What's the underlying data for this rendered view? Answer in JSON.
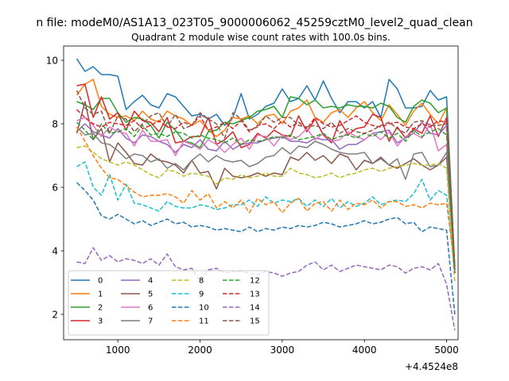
{
  "suptitle": "n file: modeM0/AS1A13_023T05_9000006062_45259cztM0_level2_quad_clean",
  "chart_data": {
    "type": "line",
    "title": "Quadrant 2 module wise count rates with 100.0s bins.",
    "xlabel": "",
    "ylabel": "",
    "x_offset_label": "+4.4524e8",
    "xlim": [
      340,
      5140
    ],
    "ylim": [
      1.2,
      10.45
    ],
    "xticks": [
      1000,
      2000,
      3000,
      4000,
      5000
    ],
    "xtick_labels": [
      "1000",
      "2000",
      "3000",
      "4000",
      "5000"
    ],
    "yticks": [
      2,
      4,
      6,
      8,
      10
    ],
    "ytick_labels": [
      "2",
      "4",
      "6",
      "8",
      "10"
    ],
    "grid": false,
    "legend_position": "lower-left",
    "x": [
      500,
      600,
      700,
      800,
      900,
      1000,
      1100,
      1200,
      1300,
      1400,
      1500,
      1600,
      1700,
      1800,
      1900,
      2000,
      2100,
      2200,
      2300,
      2400,
      2500,
      2600,
      2700,
      2800,
      2900,
      3000,
      3100,
      3200,
      3300,
      3400,
      3500,
      3600,
      3700,
      3800,
      3900,
      4000,
      4100,
      4200,
      4300,
      4400,
      4500,
      4600,
      4700,
      4800,
      4900,
      5000,
      5100
    ],
    "series": [
      {
        "name": "0",
        "color": "#1f77b4",
        "dash": "solid",
        "values": [
          10.05,
          9.65,
          9.8,
          9.55,
          9.55,
          9.5,
          8.45,
          8.7,
          8.9,
          8.6,
          8.5,
          8.95,
          8.85,
          8.55,
          8.25,
          8.3,
          8.15,
          8.3,
          7.95,
          8.2,
          8.95,
          8.15,
          8.3,
          8.55,
          8.65,
          9.1,
          8.7,
          8.8,
          9.2,
          8.75,
          9.35,
          8.8,
          8.35,
          8.7,
          8.7,
          8.5,
          8.7,
          8.2,
          9.4,
          9.1,
          8.5,
          8.5,
          8.55,
          9.05,
          8.75,
          8.85,
          3.5
        ]
      },
      {
        "name": "1",
        "color": "#ff7f0e",
        "dash": "solid",
        "values": [
          8.9,
          9.25,
          9.4,
          8.55,
          8.3,
          8.2,
          8.25,
          8.1,
          8.4,
          8.15,
          8.05,
          8.4,
          8.25,
          8.15,
          7.95,
          8.1,
          7.8,
          7.6,
          7.8,
          8.2,
          8.15,
          8.25,
          8.0,
          8.25,
          8.3,
          8.0,
          8.4,
          8.5,
          8.75,
          8.2,
          8.05,
          8.35,
          8.45,
          8.2,
          8.5,
          8.7,
          8.35,
          8.1,
          8.6,
          8.3,
          7.95,
          8.4,
          8.65,
          8.3,
          8.0,
          8.5,
          3.4
        ]
      },
      {
        "name": "2",
        "color": "#2ca02c",
        "dash": "solid",
        "values": [
          8.7,
          8.6,
          8.45,
          8.8,
          8.8,
          8.35,
          8.05,
          8.2,
          8.15,
          7.95,
          7.55,
          8.05,
          7.8,
          7.45,
          7.4,
          7.25,
          7.75,
          7.8,
          8.05,
          8.0,
          8.1,
          8.2,
          8.4,
          8.45,
          8.55,
          8.2,
          8.85,
          8.8,
          8.6,
          8.75,
          8.5,
          8.55,
          8.5,
          8.6,
          8.55,
          8.55,
          8.5,
          8.65,
          8.55,
          8.2,
          8.05,
          8.55,
          8.75,
          8.65,
          8.35,
          8.5,
          3.4
        ]
      },
      {
        "name": "3",
        "color": "#d62728",
        "dash": "solid",
        "values": [
          9.2,
          9.25,
          8.2,
          8.85,
          8.15,
          8.35,
          7.8,
          8.4,
          8.1,
          8.05,
          7.75,
          8.2,
          7.4,
          7.45,
          7.6,
          7.6,
          8.2,
          7.35,
          7.5,
          7.75,
          7.25,
          7.35,
          7.7,
          7.55,
          7.8,
          7.65,
          7.6,
          8.25,
          7.75,
          8.15,
          7.65,
          7.4,
          8.1,
          7.65,
          7.85,
          7.9,
          8.3,
          8.2,
          7.45,
          7.9,
          7.55,
          7.85,
          7.7,
          8.25,
          7.6,
          8.2,
          3.4
        ]
      },
      {
        "name": "4",
        "color": "#9467bd",
        "dash": "solid",
        "values": [
          7.75,
          8.0,
          7.75,
          7.65,
          7.55,
          7.85,
          7.55,
          7.4,
          7.65,
          7.6,
          7.45,
          7.35,
          7.1,
          7.35,
          7.25,
          7.5,
          7.2,
          7.15,
          7.45,
          7.2,
          7.35,
          7.4,
          7.4,
          7.5,
          7.55,
          7.6,
          7.45,
          7.45,
          7.4,
          7.55,
          7.5,
          7.5,
          7.2,
          7.35,
          7.35,
          7.5,
          7.7,
          7.75,
          7.8,
          7.4,
          7.55,
          7.7,
          8.05,
          7.7,
          7.65,
          7.95,
          3.3
        ]
      },
      {
        "name": "5",
        "color": "#8c564b",
        "dash": "solid",
        "values": [
          7.7,
          8.7,
          7.5,
          7.85,
          6.8,
          7.4,
          7.1,
          6.75,
          6.7,
          7.05,
          6.85,
          6.8,
          6.7,
          6.45,
          6.85,
          6.45,
          6.5,
          5.95,
          6.6,
          6.35,
          6.3,
          6.35,
          6.45,
          6.35,
          6.45,
          6.4,
          6.95,
          6.85,
          7.1,
          6.85,
          7.0,
          6.75,
          7.05,
          6.95,
          6.55,
          6.85,
          6.75,
          6.95,
          6.7,
          6.6,
          6.75,
          6.9,
          6.7,
          6.55,
          6.7,
          6.95,
          3.3
        ]
      },
      {
        "name": "6",
        "color": "#e377c2",
        "dash": "solid",
        "values": [
          8.1,
          8.2,
          7.95,
          7.6,
          7.9,
          7.75,
          7.7,
          7.3,
          7.8,
          7.45,
          7.45,
          7.5,
          7.0,
          7.45,
          7.35,
          7.2,
          7.5,
          7.35,
          7.1,
          7.35,
          7.55,
          7.2,
          7.65,
          7.6,
          7.3,
          7.65,
          7.5,
          7.6,
          7.85,
          7.5,
          7.7,
          7.45,
          7.5,
          7.75,
          7.6,
          7.5,
          7.7,
          7.5,
          7.75,
          7.3,
          7.6,
          7.7,
          7.55,
          8.0,
          7.15,
          7.35,
          3.3
        ]
      },
      {
        "name": "7",
        "color": "#7f7f7f",
        "dash": "solid",
        "values": [
          7.9,
          7.65,
          7.7,
          7.4,
          7.35,
          7.15,
          6.9,
          7.05,
          7.0,
          6.8,
          6.9,
          6.6,
          6.75,
          6.55,
          6.85,
          7.05,
          6.8,
          7.0,
          6.85,
          6.8,
          6.85,
          6.65,
          6.75,
          6.95,
          7.0,
          7.25,
          7.05,
          7.3,
          7.25,
          7.45,
          7.35,
          7.2,
          7.1,
          7.05,
          7.05,
          7.1,
          6.75,
          6.9,
          6.7,
          6.9,
          6.25,
          7.05,
          7.1,
          6.65,
          6.7,
          7.1,
          3.3
        ]
      },
      {
        "name": "8",
        "color": "#bcbd22",
        "dash": "dashed",
        "values": [
          7.25,
          7.3,
          7.1,
          6.9,
          6.8,
          6.7,
          6.8,
          6.7,
          6.55,
          6.4,
          6.3,
          6.55,
          6.5,
          6.35,
          6.45,
          6.4,
          6.35,
          6.1,
          6.3,
          6.25,
          6.4,
          6.3,
          6.35,
          6.45,
          6.35,
          6.35,
          6.6,
          6.45,
          6.4,
          6.3,
          6.35,
          6.45,
          6.3,
          6.4,
          6.45,
          6.55,
          6.6,
          6.5,
          6.6,
          6.65,
          6.7,
          6.75,
          6.7,
          6.7,
          6.75,
          6.6,
          3.0
        ]
      },
      {
        "name": "9",
        "color": "#17becf",
        "dash": "dashed",
        "values": [
          6.65,
          6.8,
          6.0,
          5.75,
          6.4,
          5.6,
          6.1,
          5.5,
          5.45,
          5.35,
          5.25,
          5.55,
          5.4,
          5.35,
          5.35,
          5.45,
          5.4,
          5.3,
          5.35,
          5.45,
          5.45,
          5.6,
          5.4,
          5.7,
          5.5,
          5.6,
          5.55,
          5.65,
          5.4,
          5.6,
          5.4,
          5.65,
          5.35,
          5.55,
          5.4,
          5.5,
          5.7,
          5.45,
          5.55,
          5.6,
          5.55,
          5.8,
          6.25,
          5.6,
          5.9,
          5.75,
          3.3
        ]
      },
      {
        "name": "10",
        "color": "#1f77b4",
        "dash": "dashed",
        "values": [
          6.15,
          5.9,
          5.6,
          5.1,
          5.0,
          5.15,
          5.0,
          4.85,
          4.95,
          4.8,
          4.9,
          5.0,
          4.85,
          4.9,
          4.75,
          4.8,
          4.75,
          4.65,
          4.7,
          4.65,
          4.6,
          4.75,
          4.6,
          4.7,
          4.65,
          4.75,
          4.7,
          4.8,
          4.75,
          4.8,
          4.9,
          4.85,
          4.75,
          4.8,
          4.85,
          4.95,
          4.85,
          4.9,
          5.0,
          5.05,
          4.85,
          4.9,
          4.6,
          4.75,
          4.7,
          4.65,
          2.0
        ]
      },
      {
        "name": "11",
        "color": "#ff7f0e",
        "dash": "dashed",
        "values": [
          7.9,
          7.45,
          7.0,
          6.6,
          6.3,
          6.25,
          6.05,
          5.85,
          5.7,
          5.75,
          5.75,
          5.8,
          5.7,
          5.5,
          5.9,
          5.6,
          5.8,
          5.35,
          5.55,
          5.35,
          5.6,
          5.2,
          5.65,
          5.45,
          5.55,
          5.2,
          5.5,
          5.65,
          5.25,
          5.5,
          5.55,
          5.25,
          5.6,
          5.3,
          5.5,
          5.45,
          5.6,
          5.35,
          5.55,
          5.55,
          5.4,
          5.45,
          5.35,
          5.5,
          5.45,
          5.5,
          3.5
        ]
      },
      {
        "name": "12",
        "color": "#2ca02c",
        "dash": "dashed",
        "values": [
          8.05,
          7.8,
          7.5,
          8.0,
          7.7,
          7.75,
          7.85,
          7.6,
          7.95,
          7.65,
          7.7,
          7.6,
          7.75,
          7.7,
          7.55,
          7.65,
          7.55,
          7.5,
          7.4,
          7.55,
          7.35,
          7.5,
          7.45,
          7.5,
          7.6,
          7.55,
          7.65,
          7.5,
          7.55,
          7.6,
          7.7,
          7.5,
          7.6,
          7.65,
          7.55,
          7.7,
          7.6,
          7.75,
          7.55,
          7.7,
          7.45,
          7.8,
          7.6,
          7.75,
          7.85,
          7.65,
          3.4
        ]
      },
      {
        "name": "13",
        "color": "#d62728",
        "dash": "dashed",
        "values": [
          8.45,
          8.2,
          8.0,
          7.9,
          8.05,
          8.0,
          7.95,
          8.1,
          7.85,
          7.95,
          8.1,
          7.9,
          7.85,
          8.05,
          7.95,
          8.25,
          7.8,
          7.9,
          8.05,
          7.85,
          8.1,
          7.75,
          7.95,
          8.0,
          7.85,
          8.1,
          7.9,
          8.05,
          7.85,
          8.2,
          8.0,
          7.9,
          7.95,
          8.1,
          8.25,
          8.05,
          7.95,
          7.9,
          8.0,
          8.05,
          7.9,
          7.85,
          8.0,
          7.9,
          8.1,
          8.05,
          3.3
        ]
      },
      {
        "name": "14",
        "color": "#9467bd",
        "dash": "dashed",
        "values": [
          3.65,
          3.6,
          4.1,
          3.7,
          3.85,
          3.65,
          3.75,
          3.7,
          3.6,
          3.75,
          3.55,
          3.9,
          3.5,
          3.4,
          3.45,
          3.05,
          3.4,
          3.45,
          3.3,
          3.35,
          3.35,
          3.3,
          3.25,
          3.35,
          3.3,
          3.2,
          3.3,
          3.35,
          3.55,
          3.65,
          3.4,
          3.55,
          3.35,
          3.45,
          3.55,
          3.5,
          3.45,
          3.4,
          3.55,
          3.5,
          3.3,
          3.45,
          3.5,
          3.4,
          3.6,
          2.95,
          1.5
        ]
      },
      {
        "name": "15",
        "color": "#8c564b",
        "dash": "dashed",
        "values": [
          9.05,
          8.5,
          8.3,
          8.4,
          7.7,
          8.25,
          8.15,
          7.75,
          8.0,
          8.25,
          8.35,
          7.9,
          8.3,
          7.85,
          7.95,
          8.35,
          8.15,
          8.0,
          7.55,
          8.35,
          8.15,
          7.8,
          7.9,
          8.25,
          8.05,
          8.2,
          8.2,
          7.95,
          7.9,
          7.95,
          7.85,
          8.05,
          7.7,
          7.85,
          7.75,
          7.7,
          7.8,
          7.95,
          8.05,
          7.85,
          7.7,
          8.05,
          8.1,
          7.95,
          7.95,
          8.0,
          3.4
        ]
      }
    ]
  }
}
